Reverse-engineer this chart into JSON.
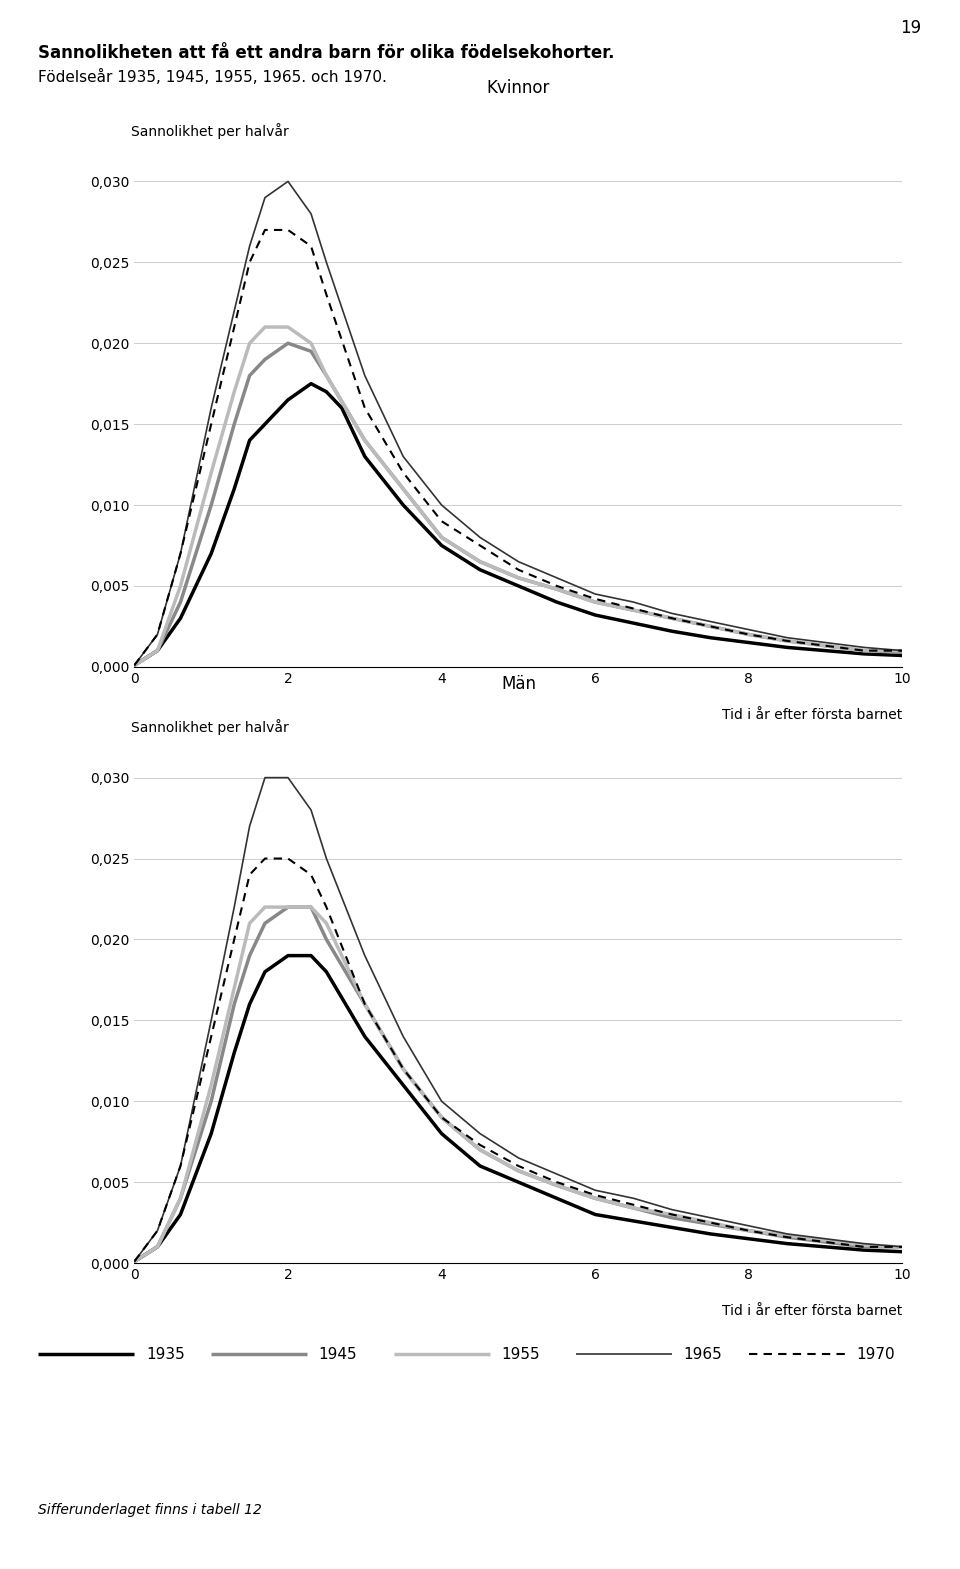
{
  "title_line1": "Sannolikheten att få ett andra barn för olika födelsekohorter.",
  "title_line2": "Födelseår 1935, 1945, 1955, 1965. och 1970.",
  "page_number": "19",
  "ylabel": "Sannolikhet per halvår",
  "xlabel": "Tid i år efter första barnet",
  "subtitle_women": "Kvinnor",
  "subtitle_men": "Män",
  "footer": "Sifferunderlaget finns i tabell 12",
  "ylim": [
    0.0,
    0.032
  ],
  "xlim": [
    0,
    10
  ],
  "yticks": [
    0.0,
    0.005,
    0.01,
    0.015,
    0.02,
    0.025,
    0.03
  ],
  "xticks": [
    0,
    2,
    4,
    6,
    8,
    10
  ],
  "colors_map": {
    "1935": "#000000",
    "1945": "#888888",
    "1955": "#bbbbbb",
    "1965": "#333333",
    "1970": "#000000"
  },
  "lw_map": {
    "1935": 2.5,
    "1945": 2.5,
    "1955": 2.5,
    "1965": 1.2,
    "1970": 1.5
  },
  "women": {
    "1935": [
      [
        0,
        0.0001
      ],
      [
        0.3,
        0.001
      ],
      [
        0.6,
        0.003
      ],
      [
        1.0,
        0.007
      ],
      [
        1.3,
        0.011
      ],
      [
        1.5,
        0.014
      ],
      [
        1.7,
        0.015
      ],
      [
        2.0,
        0.0165
      ],
      [
        2.3,
        0.0175
      ],
      [
        2.5,
        0.017
      ],
      [
        2.7,
        0.016
      ],
      [
        3.0,
        0.013
      ],
      [
        3.5,
        0.01
      ],
      [
        4.0,
        0.0075
      ],
      [
        4.5,
        0.006
      ],
      [
        5.0,
        0.005
      ],
      [
        5.5,
        0.004
      ],
      [
        6.0,
        0.0032
      ],
      [
        6.5,
        0.0027
      ],
      [
        7.0,
        0.0022
      ],
      [
        7.5,
        0.0018
      ],
      [
        8.0,
        0.0015
      ],
      [
        8.5,
        0.0012
      ],
      [
        9.0,
        0.001
      ],
      [
        9.5,
        0.0008
      ],
      [
        10.0,
        0.0007
      ]
    ],
    "1945": [
      [
        0,
        0.0001
      ],
      [
        0.3,
        0.001
      ],
      [
        0.6,
        0.004
      ],
      [
        1.0,
        0.01
      ],
      [
        1.3,
        0.015
      ],
      [
        1.5,
        0.018
      ],
      [
        1.7,
        0.019
      ],
      [
        2.0,
        0.02
      ],
      [
        2.3,
        0.0195
      ],
      [
        2.5,
        0.018
      ],
      [
        3.0,
        0.014
      ],
      [
        3.5,
        0.011
      ],
      [
        4.0,
        0.008
      ],
      [
        4.5,
        0.0065
      ],
      [
        5.0,
        0.0055
      ],
      [
        5.5,
        0.0048
      ],
      [
        6.0,
        0.004
      ],
      [
        6.5,
        0.0035
      ],
      [
        7.0,
        0.003
      ],
      [
        7.5,
        0.0025
      ],
      [
        8.0,
        0.002
      ],
      [
        8.5,
        0.0016
      ],
      [
        9.0,
        0.0013
      ],
      [
        9.5,
        0.001
      ],
      [
        10.0,
        0.0009
      ]
    ],
    "1955": [
      [
        0,
        0.0001
      ],
      [
        0.3,
        0.001
      ],
      [
        0.6,
        0.005
      ],
      [
        1.0,
        0.012
      ],
      [
        1.3,
        0.017
      ],
      [
        1.5,
        0.02
      ],
      [
        1.7,
        0.021
      ],
      [
        2.0,
        0.021
      ],
      [
        2.3,
        0.02
      ],
      [
        2.5,
        0.018
      ],
      [
        3.0,
        0.014
      ],
      [
        3.5,
        0.011
      ],
      [
        4.0,
        0.008
      ],
      [
        4.5,
        0.0065
      ],
      [
        5.0,
        0.0055
      ],
      [
        5.5,
        0.0048
      ],
      [
        6.0,
        0.004
      ],
      [
        6.5,
        0.0035
      ],
      [
        7.0,
        0.003
      ],
      [
        7.5,
        0.0025
      ],
      [
        8.0,
        0.002
      ],
      [
        8.5,
        0.0016
      ],
      [
        9.0,
        0.0013
      ],
      [
        9.5,
        0.001
      ],
      [
        10.0,
        0.001
      ]
    ],
    "1965": [
      [
        0,
        0.0001
      ],
      [
        0.3,
        0.002
      ],
      [
        0.6,
        0.007
      ],
      [
        1.0,
        0.016
      ],
      [
        1.3,
        0.022
      ],
      [
        1.5,
        0.026
      ],
      [
        1.7,
        0.029
      ],
      [
        2.0,
        0.03
      ],
      [
        2.3,
        0.028
      ],
      [
        2.5,
        0.025
      ],
      [
        3.0,
        0.018
      ],
      [
        3.5,
        0.013
      ],
      [
        4.0,
        0.01
      ],
      [
        4.5,
        0.008
      ],
      [
        5.0,
        0.0065
      ],
      [
        5.5,
        0.0055
      ],
      [
        6.0,
        0.0045
      ],
      [
        6.5,
        0.004
      ],
      [
        7.0,
        0.0033
      ],
      [
        7.5,
        0.0028
      ],
      [
        8.0,
        0.0023
      ],
      [
        8.5,
        0.0018
      ],
      [
        9.0,
        0.0015
      ],
      [
        9.5,
        0.0012
      ],
      [
        10.0,
        0.001
      ]
    ],
    "1970": [
      [
        0,
        0.0001
      ],
      [
        0.3,
        0.002
      ],
      [
        0.6,
        0.007
      ],
      [
        1.0,
        0.015
      ],
      [
        1.3,
        0.021
      ],
      [
        1.5,
        0.025
      ],
      [
        1.7,
        0.027
      ],
      [
        2.0,
        0.027
      ],
      [
        2.3,
        0.026
      ],
      [
        2.5,
        0.023
      ],
      [
        3.0,
        0.016
      ],
      [
        3.5,
        0.012
      ],
      [
        4.0,
        0.009
      ],
      [
        4.5,
        0.0075
      ],
      [
        5.0,
        0.006
      ],
      [
        5.5,
        0.005
      ],
      [
        6.0,
        0.0042
      ],
      [
        6.5,
        0.0036
      ],
      [
        7.0,
        0.003
      ],
      [
        7.5,
        0.0025
      ],
      [
        8.0,
        0.002
      ],
      [
        8.5,
        0.0016
      ],
      [
        9.0,
        0.0013
      ],
      [
        9.5,
        0.001
      ],
      [
        10.0,
        0.001
      ]
    ]
  },
  "men": {
    "1935": [
      [
        0,
        0.0001
      ],
      [
        0.3,
        0.001
      ],
      [
        0.6,
        0.003
      ],
      [
        1.0,
        0.008
      ],
      [
        1.3,
        0.013
      ],
      [
        1.5,
        0.016
      ],
      [
        1.7,
        0.018
      ],
      [
        2.0,
        0.019
      ],
      [
        2.3,
        0.019
      ],
      [
        2.5,
        0.018
      ],
      [
        3.0,
        0.014
      ],
      [
        3.5,
        0.011
      ],
      [
        4.0,
        0.008
      ],
      [
        4.5,
        0.006
      ],
      [
        5.0,
        0.005
      ],
      [
        5.5,
        0.004
      ],
      [
        6.0,
        0.003
      ],
      [
        6.5,
        0.0026
      ],
      [
        7.0,
        0.0022
      ],
      [
        7.5,
        0.0018
      ],
      [
        8.0,
        0.0015
      ],
      [
        8.5,
        0.0012
      ],
      [
        9.0,
        0.001
      ],
      [
        9.5,
        0.0008
      ],
      [
        10.0,
        0.0007
      ]
    ],
    "1945": [
      [
        0,
        0.0001
      ],
      [
        0.3,
        0.001
      ],
      [
        0.6,
        0.004
      ],
      [
        1.0,
        0.01
      ],
      [
        1.3,
        0.016
      ],
      [
        1.5,
        0.019
      ],
      [
        1.7,
        0.021
      ],
      [
        2.0,
        0.022
      ],
      [
        2.3,
        0.022
      ],
      [
        2.5,
        0.02
      ],
      [
        3.0,
        0.016
      ],
      [
        3.5,
        0.012
      ],
      [
        4.0,
        0.009
      ],
      [
        4.5,
        0.007
      ],
      [
        5.0,
        0.0057
      ],
      [
        5.5,
        0.0048
      ],
      [
        6.0,
        0.004
      ],
      [
        6.5,
        0.0034
      ],
      [
        7.0,
        0.0028
      ],
      [
        7.5,
        0.0024
      ],
      [
        8.0,
        0.002
      ],
      [
        8.5,
        0.0016
      ],
      [
        9.0,
        0.0013
      ],
      [
        9.5,
        0.001
      ],
      [
        10.0,
        0.001
      ]
    ],
    "1955": [
      [
        0,
        0.0001
      ],
      [
        0.3,
        0.001
      ],
      [
        0.6,
        0.004
      ],
      [
        1.0,
        0.011
      ],
      [
        1.3,
        0.017
      ],
      [
        1.5,
        0.021
      ],
      [
        1.7,
        0.022
      ],
      [
        2.0,
        0.022
      ],
      [
        2.3,
        0.022
      ],
      [
        2.5,
        0.021
      ],
      [
        3.0,
        0.016
      ],
      [
        3.5,
        0.012
      ],
      [
        4.0,
        0.009
      ],
      [
        4.5,
        0.007
      ],
      [
        5.0,
        0.0057
      ],
      [
        5.5,
        0.0048
      ],
      [
        6.0,
        0.004
      ],
      [
        6.5,
        0.0034
      ],
      [
        7.0,
        0.003
      ],
      [
        7.5,
        0.0025
      ],
      [
        8.0,
        0.002
      ],
      [
        8.5,
        0.0017
      ],
      [
        9.0,
        0.0014
      ],
      [
        9.5,
        0.0011
      ],
      [
        10.0,
        0.001
      ]
    ],
    "1965": [
      [
        0,
        0.0001
      ],
      [
        0.3,
        0.002
      ],
      [
        0.6,
        0.006
      ],
      [
        1.0,
        0.015
      ],
      [
        1.3,
        0.022
      ],
      [
        1.5,
        0.027
      ],
      [
        1.7,
        0.03
      ],
      [
        2.0,
        0.03
      ],
      [
        2.3,
        0.028
      ],
      [
        2.5,
        0.025
      ],
      [
        3.0,
        0.019
      ],
      [
        3.5,
        0.014
      ],
      [
        4.0,
        0.01
      ],
      [
        4.5,
        0.008
      ],
      [
        5.0,
        0.0065
      ],
      [
        5.5,
        0.0055
      ],
      [
        6.0,
        0.0045
      ],
      [
        6.5,
        0.004
      ],
      [
        7.0,
        0.0033
      ],
      [
        7.5,
        0.0028
      ],
      [
        8.0,
        0.0023
      ],
      [
        8.5,
        0.0018
      ],
      [
        9.0,
        0.0015
      ],
      [
        9.5,
        0.0012
      ],
      [
        10.0,
        0.001
      ]
    ],
    "1970": [
      [
        0,
        0.0001
      ],
      [
        0.3,
        0.002
      ],
      [
        0.6,
        0.006
      ],
      [
        1.0,
        0.014
      ],
      [
        1.3,
        0.02
      ],
      [
        1.5,
        0.024
      ],
      [
        1.7,
        0.025
      ],
      [
        2.0,
        0.025
      ],
      [
        2.3,
        0.024
      ],
      [
        2.5,
        0.022
      ],
      [
        3.0,
        0.016
      ],
      [
        3.5,
        0.012
      ],
      [
        4.0,
        0.009
      ],
      [
        4.5,
        0.0073
      ],
      [
        5.0,
        0.006
      ],
      [
        5.5,
        0.005
      ],
      [
        6.0,
        0.0042
      ],
      [
        6.5,
        0.0036
      ],
      [
        7.0,
        0.003
      ],
      [
        7.5,
        0.0025
      ],
      [
        8.0,
        0.002
      ],
      [
        8.5,
        0.0016
      ],
      [
        9.0,
        0.0013
      ],
      [
        9.5,
        0.001
      ],
      [
        10.0,
        0.001
      ]
    ]
  }
}
